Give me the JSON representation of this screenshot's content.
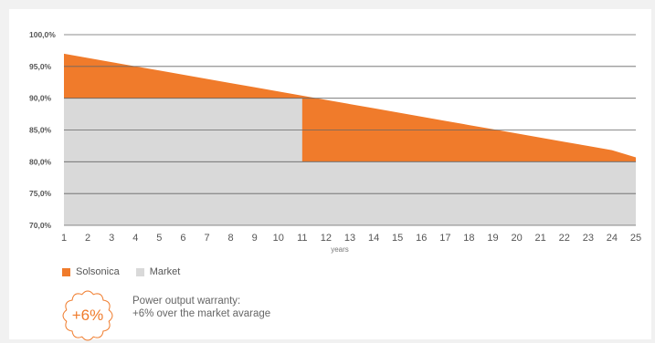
{
  "colors": {
    "solsonica": "#f07b2b",
    "market": "#d9d9d9",
    "grid": "#666666",
    "text": "#555555"
  },
  "chart_data": {
    "type": "area",
    "x": [
      1,
      2,
      3,
      4,
      5,
      6,
      7,
      8,
      9,
      10,
      11,
      12,
      13,
      14,
      15,
      16,
      17,
      18,
      19,
      20,
      21,
      22,
      23,
      24,
      25
    ],
    "x_ticks": [
      "1",
      "2",
      "3",
      "4",
      "5",
      "6",
      "7",
      "8",
      "9",
      "10",
      "11",
      "12",
      "13",
      "14",
      "15",
      "16",
      "17",
      "18",
      "19",
      "20",
      "21",
      "22",
      "23",
      "24",
      "25"
    ],
    "y_ticks": [
      "100,0%",
      "95,0%",
      "90,0%",
      "85,0%",
      "80,0%",
      "75,0%",
      "70,0%"
    ],
    "y_tick_values": [
      100,
      95,
      90,
      85,
      80,
      75,
      70
    ],
    "ylim": [
      70,
      100
    ],
    "xlabel": "years",
    "ylabel": "",
    "grid": true,
    "legend_position": "bottom-left",
    "series": [
      {
        "name": "Solsonica",
        "color": "#f07b2b",
        "values": [
          97.0,
          96.34,
          95.68,
          95.02,
          94.36,
          93.7,
          93.04,
          92.38,
          91.72,
          91.06,
          90.4,
          89.74,
          89.08,
          88.42,
          87.76,
          87.1,
          86.44,
          85.78,
          85.12,
          84.46,
          83.8,
          83.14,
          82.48,
          81.82,
          80.7
        ]
      },
      {
        "name": "Market",
        "color": "#d9d9d9",
        "values": [
          90,
          90,
          90,
          90,
          90,
          90,
          90,
          90,
          90,
          90,
          80,
          80,
          80,
          80,
          80,
          80,
          80,
          80,
          80,
          80,
          80,
          80,
          80,
          80,
          80
        ]
      }
    ]
  },
  "legend": {
    "solsonica": "Solsonica",
    "market": "Market"
  },
  "badge": {
    "text": "+6%"
  },
  "warranty": {
    "line1": "Power output warranty:",
    "line2": "+6% over the market avarage"
  }
}
